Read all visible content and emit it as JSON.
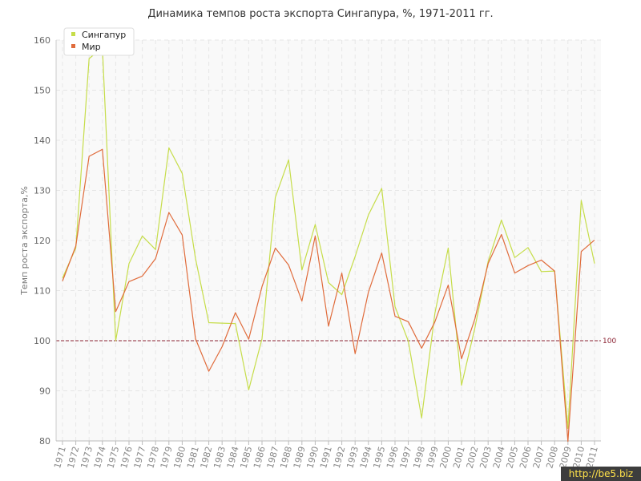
{
  "title": "Динамика темпов роста экспорта Сингапура, %, 1971-2011 гг.",
  "watermark": "http://be5.biz",
  "colors": {
    "singapore": "#c6dd4a",
    "world": "#e06c3c",
    "reference": "#8b2232",
    "grid": "#e6e6e6",
    "plot_bg": "#f9f9f9"
  },
  "chart_data": {
    "type": "line",
    "title": "Динамика темпов роста экспорта Сингапура, %, 1971-2011 гг.",
    "xlabel": "",
    "ylabel": "Темп роста экспорта,%",
    "ylim": [
      80,
      160
    ],
    "yticks": [
      80,
      90,
      100,
      110,
      120,
      130,
      140,
      150,
      160
    ],
    "grid": true,
    "legend_position": "top-left",
    "reference_line": {
      "value": 100,
      "label": "100"
    },
    "categories": [
      "1971",
      "1972",
      "1973",
      "1974",
      "1975",
      "1976",
      "1977",
      "1978",
      "1979",
      "1980",
      "1981",
      "1982",
      "1983",
      "1984",
      "1985",
      "1986",
      "1987",
      "1988",
      "1989",
      "1990",
      "1991",
      "1992",
      "1993",
      "1994",
      "1995",
      "1996",
      "1997",
      "1998",
      "1999",
      "2000",
      "2001",
      "2002",
      "2003",
      "2004",
      "2005",
      "2006",
      "2007",
      "2008",
      "2009",
      "2010",
      "2011"
    ],
    "series": [
      {
        "name": "Сингапур",
        "color": "#c6dd4a",
        "values": [
          112.5,
          118.5,
          156.3,
          158.5,
          100.0,
          115.4,
          120.9,
          118.2,
          138.5,
          133.4,
          116.4,
          103.6,
          103.5,
          103.4,
          90.2,
          100.4,
          128.6,
          136.1,
          114.1,
          123.2,
          111.6,
          109.2,
          116.8,
          125.1,
          130.4,
          106.8,
          99.9,
          84.6,
          105.5,
          118.5,
          91.1,
          102.5,
          115.8,
          124.1,
          116.6,
          118.6,
          113.8,
          113.9,
          82.5,
          128.0,
          115.4
        ]
      },
      {
        "name": "Мир",
        "color": "#e06c3c",
        "values": [
          111.9,
          118.9,
          136.8,
          138.2,
          105.8,
          111.8,
          112.9,
          116.4,
          125.6,
          121.1,
          100.4,
          93.9,
          98.8,
          105.6,
          100.3,
          110.8,
          118.5,
          115.1,
          107.9,
          120.9,
          102.9,
          113.5,
          97.4,
          109.7,
          117.5,
          104.9,
          103.8,
          98.5,
          103.8,
          111.1,
          96.4,
          104.3,
          115.4,
          121.2,
          113.5,
          115.0,
          116.1,
          113.9,
          79.9,
          117.8,
          120.1
        ]
      }
    ]
  }
}
